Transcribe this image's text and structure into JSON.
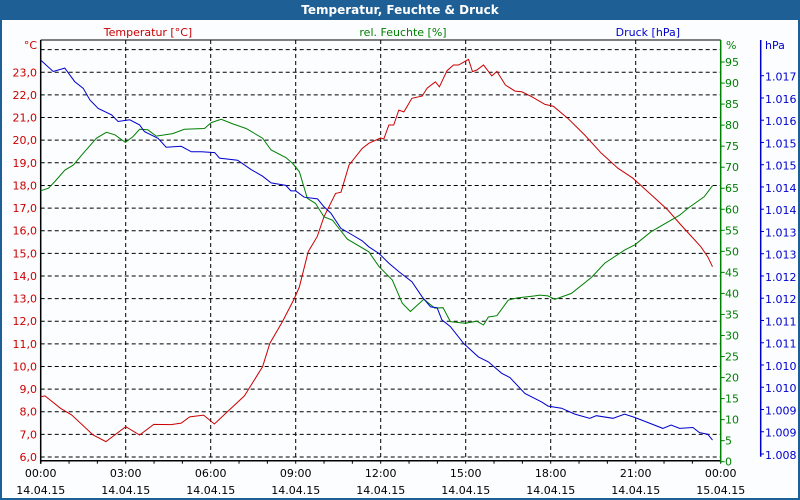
{
  "window": {
    "title": "Temperatur, Feuchte & Druck"
  },
  "colors": {
    "temperature": "#cc0000",
    "humidity": "#008000",
    "pressure": "#0000cc",
    "titlebar": "#1e5f96"
  },
  "chart_data": {
    "type": "line",
    "title": "Temperatur, Feuchte & Druck",
    "x_unit": "hours since 14.04.15 00:00",
    "xlim": [
      0,
      24
    ],
    "x_ticks": [
      {
        "time": "00:00",
        "date": "14.04.15"
      },
      {
        "time": "03:00",
        "date": "14.04.15"
      },
      {
        "time": "06:00",
        "date": "14.04.15"
      },
      {
        "time": "09:00",
        "date": "14.04.15"
      },
      {
        "time": "12:00",
        "date": "14.04.15"
      },
      {
        "time": "15:00",
        "date": "14.04.15"
      },
      {
        "time": "18:00",
        "date": "14.04.15"
      },
      {
        "time": "21:00",
        "date": "14.04.15"
      },
      {
        "time": "00:00",
        "date": "15.04.15"
      }
    ],
    "grid": true,
    "axes": {
      "temperature": {
        "unit_label": "°C",
        "legend": "Temperatur [°C]",
        "ylim": [
          6,
          24
        ],
        "tick_labels": [
          "23,0",
          "22,0",
          "21,0",
          "20,0",
          "19,0",
          "18,0",
          "17,0",
          "16,0",
          "15,0",
          "14,0",
          "13,0",
          "12,0",
          "11,0",
          "10,0",
          "9,0",
          "8,0",
          "7,0",
          "6,0"
        ]
      },
      "humidity": {
        "unit_label": "%",
        "legend": "rel. Feuchte [%]",
        "ylim": [
          0,
          95
        ],
        "tick_labels": [
          "95",
          "90",
          "85",
          "80",
          "75",
          "70",
          "65",
          "60",
          "55",
          "50",
          "45",
          "40",
          "35",
          "30",
          "25",
          "20",
          "15",
          "10",
          "5",
          "0"
        ]
      },
      "pressure": {
        "unit_label": "hPa",
        "legend": "Druck [hPa]",
        "ylim": [
          1008,
          1017
        ],
        "tick_labels": [
          "1.017",
          "1.016",
          "1.016",
          "1.015",
          "1.015",
          "1.014",
          "1.014",
          "1.013",
          "1.013",
          "1.012",
          "1.012",
          "1.011",
          "1.011",
          "1.010",
          "1.010",
          "1.009",
          "1.009",
          "1.008"
        ]
      }
    },
    "series": [
      {
        "name": "Temperatur [°C]",
        "axis": "temperature",
        "points": [
          [
            0,
            8.66
          ],
          [
            0.15,
            8.7
          ],
          [
            0.7,
            8.15
          ],
          [
            1.09,
            7.86
          ],
          [
            1.85,
            6.97
          ],
          [
            2.3,
            6.68
          ],
          [
            3.0,
            7.34
          ],
          [
            3.49,
            6.97
          ],
          [
            3.99,
            7.44
          ],
          [
            4.6,
            7.43
          ],
          [
            4.96,
            7.5
          ],
          [
            5.26,
            7.77
          ],
          [
            5.75,
            7.85
          ],
          [
            6.13,
            7.46
          ],
          [
            6.66,
            8.08
          ],
          [
            7.19,
            8.7
          ],
          [
            7.83,
            9.99
          ],
          [
            8.09,
            11.03
          ],
          [
            8.53,
            11.98
          ],
          [
            8.95,
            13.0
          ],
          [
            9.13,
            13.52
          ],
          [
            9.44,
            15.07
          ],
          [
            9.76,
            15.74
          ],
          [
            10.0,
            16.62
          ],
          [
            10.41,
            17.65
          ],
          [
            10.6,
            17.7
          ],
          [
            10.88,
            18.9
          ],
          [
            11.35,
            19.64
          ],
          [
            11.58,
            19.86
          ],
          [
            12.0,
            20.1
          ],
          [
            12.11,
            20.05
          ],
          [
            12.29,
            20.67
          ],
          [
            12.46,
            20.67
          ],
          [
            12.64,
            21.33
          ],
          [
            12.82,
            21.25
          ],
          [
            13.1,
            21.85
          ],
          [
            13.46,
            21.95
          ],
          [
            13.64,
            22.3
          ],
          [
            13.93,
            22.58
          ],
          [
            14.07,
            22.36
          ],
          [
            14.34,
            23.07
          ],
          [
            14.57,
            23.32
          ],
          [
            14.75,
            23.32
          ],
          [
            15.1,
            23.57
          ],
          [
            15.24,
            23.03
          ],
          [
            15.39,
            23.1
          ],
          [
            15.63,
            23.32
          ],
          [
            15.92,
            22.84
          ],
          [
            16.1,
            23.04
          ],
          [
            16.4,
            22.44
          ],
          [
            16.74,
            22.17
          ],
          [
            16.98,
            22.14
          ],
          [
            17.33,
            21.92
          ],
          [
            17.8,
            21.58
          ],
          [
            18.09,
            21.5
          ],
          [
            18.6,
            20.97
          ],
          [
            19.2,
            20.23
          ],
          [
            19.79,
            19.42
          ],
          [
            20.37,
            18.76
          ],
          [
            20.9,
            18.32
          ],
          [
            21.55,
            17.58
          ],
          [
            22.13,
            16.92
          ],
          [
            22.6,
            16.25
          ],
          [
            23.3,
            15.29
          ],
          [
            23.54,
            14.85
          ],
          [
            23.71,
            14.41
          ]
        ]
      },
      {
        "name": "rel. Feuchte [%]",
        "axis": "humidity",
        "points": [
          [
            0,
            64.4
          ],
          [
            0.27,
            65.0
          ],
          [
            0.5,
            66.6
          ],
          [
            0.85,
            69.3
          ],
          [
            1.15,
            70.5
          ],
          [
            1.5,
            73.3
          ],
          [
            1.97,
            76.9
          ],
          [
            2.32,
            78.3
          ],
          [
            2.62,
            77.7
          ],
          [
            2.99,
            75.9
          ],
          [
            3.26,
            77.3
          ],
          [
            3.49,
            79.0
          ],
          [
            3.78,
            78.9
          ],
          [
            4.08,
            77.4
          ],
          [
            4.66,
            78.0
          ],
          [
            5.07,
            79.0
          ],
          [
            5.78,
            79.2
          ],
          [
            6.02,
            80.6
          ],
          [
            6.37,
            81.4
          ],
          [
            6.78,
            80.3
          ],
          [
            7.25,
            79.2
          ],
          [
            7.83,
            76.9
          ],
          [
            8.13,
            74.1
          ],
          [
            8.65,
            72.3
          ],
          [
            8.89,
            70.9
          ],
          [
            9.13,
            68.9
          ],
          [
            9.41,
            62.6
          ],
          [
            9.7,
            61.4
          ],
          [
            10.0,
            58.2
          ],
          [
            10.3,
            57.4
          ],
          [
            10.47,
            55.9
          ],
          [
            10.82,
            52.9
          ],
          [
            11.58,
            49.9
          ],
          [
            11.94,
            46.4
          ],
          [
            12.41,
            43.2
          ],
          [
            12.76,
            37.7
          ],
          [
            13.05,
            35.7
          ],
          [
            13.52,
            38.6
          ],
          [
            13.91,
            36.5
          ],
          [
            14.2,
            36.6
          ],
          [
            14.46,
            33.3
          ],
          [
            14.98,
            32.9
          ],
          [
            15.39,
            33.4
          ],
          [
            15.63,
            32.5
          ],
          [
            15.8,
            34.4
          ],
          [
            16.1,
            34.7
          ],
          [
            16.5,
            38.4
          ],
          [
            16.8,
            38.9
          ],
          [
            17.44,
            39.4
          ],
          [
            17.62,
            39.6
          ],
          [
            17.9,
            39.4
          ],
          [
            18.15,
            38.6
          ],
          [
            18.73,
            40.0
          ],
          [
            19.44,
            43.8
          ],
          [
            19.91,
            47.2
          ],
          [
            20.61,
            50.3
          ],
          [
            20.96,
            51.5
          ],
          [
            21.55,
            54.7
          ],
          [
            22.55,
            58.6
          ],
          [
            22.84,
            60.2
          ],
          [
            23.42,
            63.0
          ],
          [
            23.71,
            65.6
          ]
        ]
      },
      {
        "name": "Druck [hPa]",
        "axis": "pressure",
        "points": [
          [
            0,
            1017.37
          ],
          [
            0.44,
            1017.1
          ],
          [
            0.85,
            1017.18
          ],
          [
            1.2,
            1016.86
          ],
          [
            1.5,
            1016.7
          ],
          [
            1.74,
            1016.42
          ],
          [
            2.03,
            1016.22
          ],
          [
            2.5,
            1016.07
          ],
          [
            2.73,
            1015.91
          ],
          [
            3.14,
            1015.95
          ],
          [
            3.49,
            1015.83
          ],
          [
            3.66,
            1015.67
          ],
          [
            4.14,
            1015.51
          ],
          [
            4.43,
            1015.3
          ],
          [
            4.96,
            1015.32
          ],
          [
            5.32,
            1015.19
          ],
          [
            5.67,
            1015.19
          ],
          [
            6.14,
            1015.17
          ],
          [
            6.31,
            1015.04
          ],
          [
            6.95,
            1014.99
          ],
          [
            7.42,
            1014.77
          ],
          [
            7.83,
            1014.61
          ],
          [
            8.13,
            1014.45
          ],
          [
            8.65,
            1014.39
          ],
          [
            8.83,
            1014.26
          ],
          [
            9.0,
            1014.26
          ],
          [
            9.3,
            1014.11
          ],
          [
            9.77,
            1014.07
          ],
          [
            10.0,
            1013.88
          ],
          [
            10.24,
            1013.73
          ],
          [
            10.59,
            1013.37
          ],
          [
            11.0,
            1013.21
          ],
          [
            11.35,
            1013.07
          ],
          [
            11.58,
            1012.93
          ],
          [
            11.94,
            1012.77
          ],
          [
            12.29,
            1012.54
          ],
          [
            12.64,
            1012.34
          ],
          [
            13.1,
            1012.1
          ],
          [
            13.46,
            1011.74
          ],
          [
            13.76,
            1011.5
          ],
          [
            13.99,
            1011.48
          ],
          [
            14.16,
            1011.19
          ],
          [
            14.46,
            1011.03
          ],
          [
            14.93,
            1010.63
          ],
          [
            15.45,
            1010.31
          ],
          [
            15.8,
            1010.19
          ],
          [
            16.27,
            1009.92
          ],
          [
            16.56,
            1009.82
          ],
          [
            17.09,
            1009.44
          ],
          [
            17.68,
            1009.24
          ],
          [
            17.91,
            1009.14
          ],
          [
            18.38,
            1009.09
          ],
          [
            18.85,
            1008.95
          ],
          [
            19.38,
            1008.85
          ],
          [
            19.61,
            1008.91
          ],
          [
            20.2,
            1008.85
          ],
          [
            20.61,
            1008.95
          ],
          [
            20.96,
            1008.87
          ],
          [
            21.2,
            1008.81
          ],
          [
            21.96,
            1008.61
          ],
          [
            22.25,
            1008.69
          ],
          [
            22.55,
            1008.61
          ],
          [
            23.02,
            1008.63
          ],
          [
            23.25,
            1008.51
          ],
          [
            23.54,
            1008.47
          ],
          [
            23.71,
            1008.33
          ]
        ]
      }
    ]
  }
}
